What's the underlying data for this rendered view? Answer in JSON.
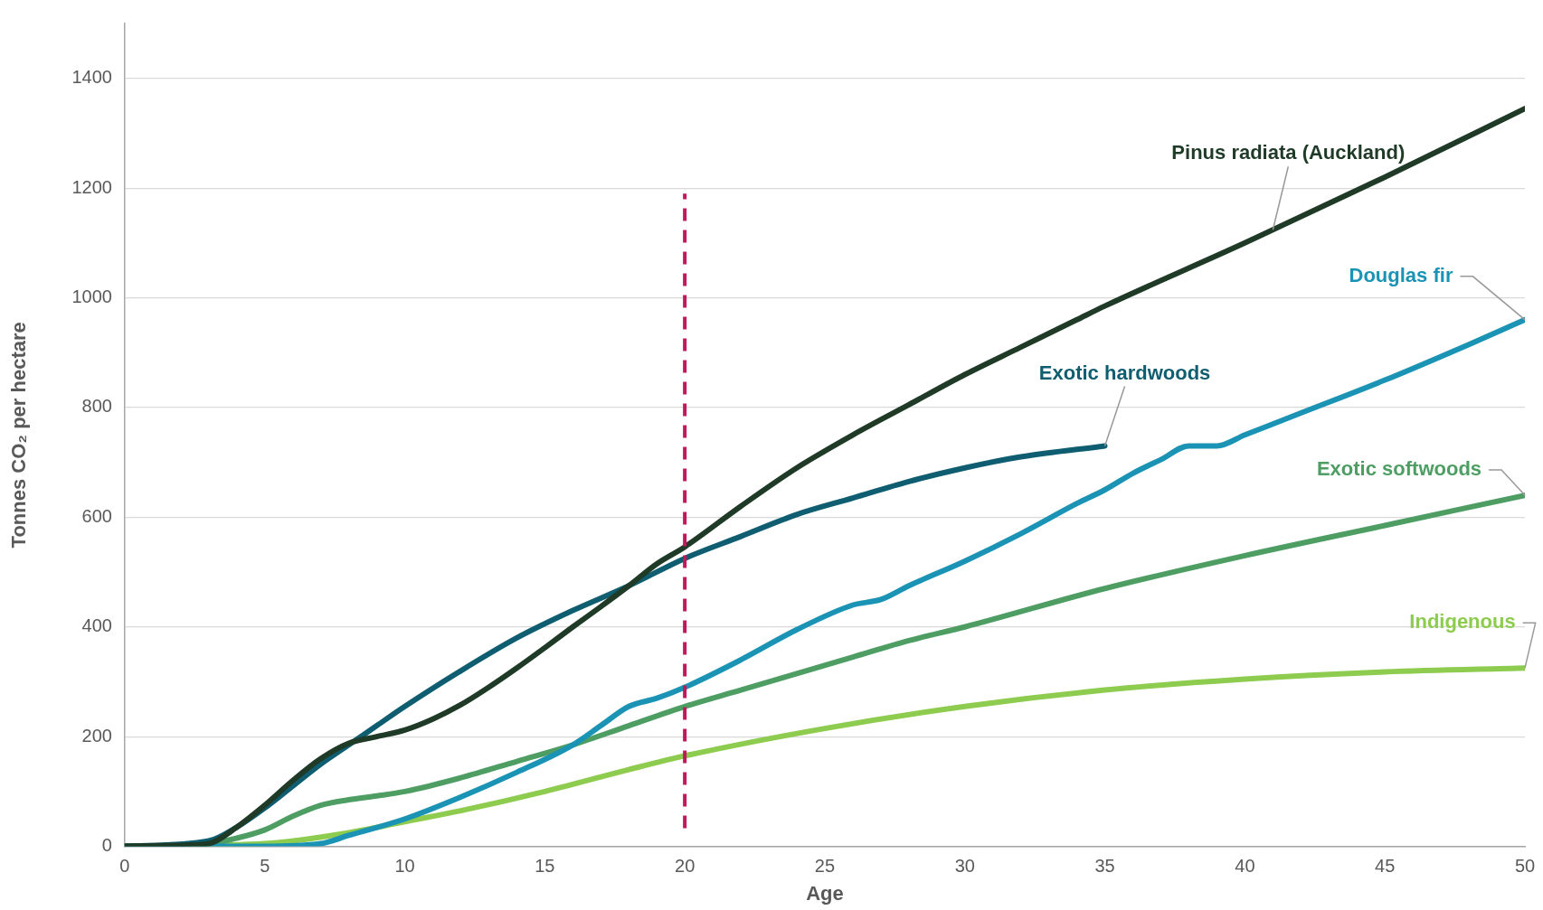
{
  "chart_data": {
    "type": "line",
    "xlabel": "Age",
    "ylabel": "Tonnes CO₂ per hectare",
    "xlim": [
      0,
      50
    ],
    "xticks": [
      0,
      5,
      10,
      15,
      20,
      25,
      30,
      35,
      40,
      45,
      50
    ],
    "ylim": [
      0,
      1500
    ],
    "yticks": [
      0,
      200,
      400,
      600,
      800,
      1000,
      1200,
      1400
    ],
    "grid": "y",
    "legend": false,
    "marker": "none",
    "line_style": "solid",
    "ref_lines": [
      {
        "axis": "x",
        "value": 20,
        "color": "#c0185a",
        "line_style": "dashed"
      }
    ],
    "series": [
      {
        "name": "Pinus radiata (Auckland)",
        "color": "#1f3a27",
        "x": [
          0,
          2,
          3,
          4,
          5,
          6,
          7,
          8,
          9,
          10,
          11,
          12,
          13,
          14,
          15,
          16,
          17,
          18,
          19,
          20,
          22,
          24,
          26,
          28,
          30,
          32,
          34,
          35,
          40,
          45,
          50
        ],
        "values": [
          0,
          2,
          5,
          35,
          75,
          120,
          160,
          188,
          200,
          212,
          232,
          258,
          290,
          325,
          362,
          400,
          437,
          475,
          515,
          546,
          620,
          690,
          750,
          805,
          860,
          910,
          960,
          985,
          1100,
          1220,
          1345
        ]
      },
      {
        "name": "Exotic hardwoods",
        "color": "#0f5d70",
        "x": [
          0,
          3,
          4,
          5,
          6,
          7,
          8,
          9,
          10,
          12,
          14,
          16,
          18,
          20,
          22,
          24,
          26,
          28,
          30,
          32,
          35
        ],
        "values": [
          0,
          10,
          35,
          70,
          110,
          150,
          185,
          220,
          255,
          320,
          380,
          430,
          475,
          525,
          565,
          605,
          635,
          665,
          690,
          710,
          730
        ]
      },
      {
        "name": "Douglas fir",
        "color": "#1a93b5",
        "x": [
          0,
          5,
          7,
          8,
          10,
          12,
          14,
          16,
          17,
          18,
          19,
          20,
          22,
          24,
          26,
          27,
          28,
          30,
          32,
          34,
          35,
          36,
          37,
          38,
          39,
          40,
          42,
          45,
          48,
          50
        ],
        "values": [
          0,
          0,
          5,
          20,
          50,
          90,
          135,
          185,
          220,
          255,
          270,
          290,
          340,
          395,
          440,
          450,
          475,
          520,
          570,
          625,
          650,
          680,
          705,
          730,
          730,
          750,
          790,
          850,
          915,
          960
        ]
      },
      {
        "name": "Exotic softwoods",
        "color": "#4e9e64",
        "x": [
          0,
          3,
          4,
          5,
          6,
          7,
          8,
          9,
          10,
          12,
          14,
          16,
          18,
          20,
          22,
          24,
          26,
          28,
          30,
          35,
          40,
          45,
          50
        ],
        "values": [
          0,
          5,
          15,
          30,
          55,
          75,
          85,
          92,
          100,
          125,
          155,
          185,
          220,
          255,
          285,
          315,
          345,
          375,
          400,
          470,
          530,
          585,
          640
        ]
      },
      {
        "name": "Indigenous",
        "color": "#8dcc4e",
        "x": [
          0,
          5,
          8,
          10,
          12,
          15,
          18,
          20,
          25,
          30,
          35,
          40,
          45,
          50
        ],
        "values": [
          0,
          5,
          25,
          45,
          65,
          100,
          140,
          165,
          215,
          255,
          285,
          305,
          318,
          325
        ]
      }
    ]
  }
}
